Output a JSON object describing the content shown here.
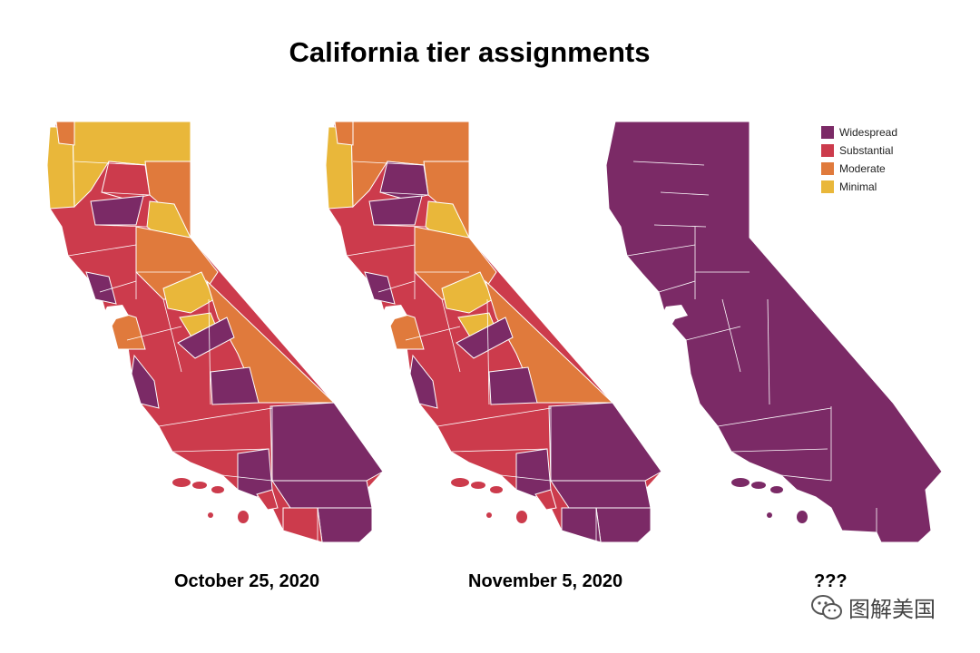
{
  "title": "California tier assignments",
  "colors": {
    "widespread": "#7b2a66",
    "substantial": "#cc3b4c",
    "moderate": "#e07a3c",
    "minimal": "#e9b73a",
    "border": "#ffffff"
  },
  "legend": [
    {
      "label": "Widespread",
      "tier": "widespread"
    },
    {
      "label": "Substantial",
      "tier": "substantial"
    },
    {
      "label": "Moderate",
      "tier": "moderate"
    },
    {
      "label": "Minimal",
      "tier": "minimal"
    }
  ],
  "maps": [
    {
      "caption": "October 25, 2020",
      "base_tier": "substantial"
    },
    {
      "caption": "November 5, 2020",
      "base_tier": "substantial"
    },
    {
      "caption": "???",
      "base_tier": "widespread"
    }
  ],
  "watermark": {
    "text": "图解美国",
    "icon": "wechat-icon"
  }
}
